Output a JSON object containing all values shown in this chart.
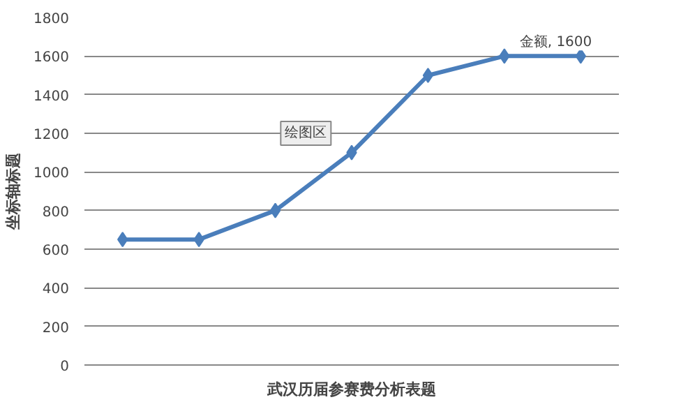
{
  "chart_data": {
    "type": "line",
    "xlabel": "武汉历届参赛费分析表题",
    "ylabel": "坐标轴标题",
    "categories": [
      null,
      null,
      null,
      null,
      null,
      null,
      null
    ],
    "series": [
      {
        "color": "#4a7ebb",
        "values": [
          650,
          650,
          800,
          1100,
          1500,
          1600,
          1600
        ],
        "value_labels": [
          null,
          null,
          null,
          null,
          null,
          null,
          "金额, 1600"
        ]
      }
    ],
    "ylim": [
      0,
      1800
    ],
    "yticks": [
      0,
      200,
      400,
      600,
      800,
      1000,
      1200,
      1400,
      1600,
      1800
    ],
    "grid": "y",
    "marker": "diamond",
    "line_style": "solid",
    "annotations": [
      "绘图区"
    ]
  }
}
